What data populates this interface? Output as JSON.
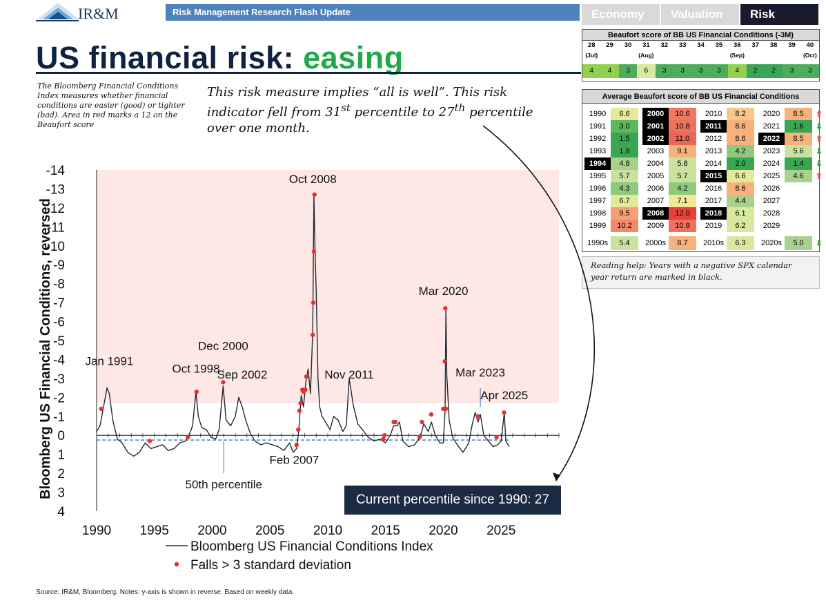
{
  "header": {
    "logo_text": "IR&M",
    "banner": "Risk Management Research Flash Update",
    "tabs": [
      {
        "label": "Economy",
        "active": false
      },
      {
        "label": "Valuation",
        "active": false
      },
      {
        "label": "Risk",
        "active": true
      }
    ]
  },
  "title": {
    "main": "US financial risk: ",
    "accent": "easing"
  },
  "side_note": "The Bloomberg Financial Conditions Index measures whether financial conditions are easier (good) or tighter (bad). Area in red marks a 12 on the Beaufort score",
  "callout": {
    "text": "This risk measure implies “all is well”. This risk indicator fell from 31",
    "sup1": "st",
    "mid": " percentile to 27",
    "sup2": "th",
    "end": " percentile over one month."
  },
  "beaufort_weekly": {
    "title": "Beaufort score of BB US Financial Conditions (-3M)",
    "weeks": [
      "28",
      "29",
      "30",
      "31",
      "32",
      "33",
      "34",
      "35",
      "36",
      "37",
      "38",
      "39",
      "40"
    ],
    "months": [
      "(Jul)",
      "",
      "",
      "(Aug)",
      "",
      "",
      "",
      "",
      "(Sep)",
      "",
      "",
      "",
      "(Oct)"
    ],
    "scores": [
      "4",
      "4",
      "3",
      "6",
      "3",
      "3",
      "3",
      "3",
      "4",
      "2",
      "2",
      "3",
      "3"
    ],
    "score_colors": [
      "#92d050",
      "#92d050",
      "#4ead5b",
      "#d9e8a0",
      "#4ead5b",
      "#4ead5b",
      "#4ead5b",
      "#4ead5b",
      "#92d050",
      "#3aa654",
      "#3aa654",
      "#4ead5b",
      "#4ead5b"
    ]
  },
  "beaufort_annual": {
    "title": "Average Beaufort score of BB US Financial Conditions",
    "columns": [
      [
        {
          "year": "1990",
          "value": "6.6",
          "color": "#e6e89a",
          "neg": false
        },
        {
          "year": "1991",
          "value": "3.0",
          "color": "#5cb85c",
          "neg": false
        },
        {
          "year": "1992",
          "value": "1.5",
          "color": "#3aa654",
          "neg": false
        },
        {
          "year": "1993",
          "value": "1.9",
          "color": "#3aa654",
          "neg": false
        },
        {
          "year": "1994",
          "value": "4.8",
          "color": "#a9d18e",
          "neg": true
        },
        {
          "year": "1995",
          "value": "5.7",
          "color": "#c9e2a0",
          "neg": false
        },
        {
          "year": "1996",
          "value": "4.3",
          "color": "#8fc97e",
          "neg": false
        },
        {
          "year": "1997",
          "value": "6.7",
          "color": "#e6e89a",
          "neg": false
        },
        {
          "year": "1998",
          "value": "9.5",
          "color": "#f4a074",
          "neg": false
        },
        {
          "year": "1999",
          "value": "10.2",
          "color": "#f08a6a",
          "neg": false
        }
      ],
      [
        {
          "year": "2000",
          "value": "10.6",
          "color": "#ee7a63",
          "neg": true
        },
        {
          "year": "2001",
          "value": "10.8",
          "color": "#ec715f",
          "neg": true
        },
        {
          "year": "2002",
          "value": "11.0",
          "color": "#ea665b",
          "neg": true
        },
        {
          "year": "2003",
          "value": "9.1",
          "color": "#f6b17c",
          "neg": false
        },
        {
          "year": "2004",
          "value": "5.8",
          "color": "#c9e2a0",
          "neg": false
        },
        {
          "year": "2005",
          "value": "5.7",
          "color": "#c9e2a0",
          "neg": false
        },
        {
          "year": "2006",
          "value": "4.2",
          "color": "#8fc97e",
          "neg": false
        },
        {
          "year": "2007",
          "value": "7.1",
          "color": "#f3e89a",
          "neg": false
        },
        {
          "year": "2008",
          "value": "12.0",
          "color": "#e8403a",
          "neg": true
        },
        {
          "year": "2009",
          "value": "10.9",
          "color": "#ec715f",
          "neg": false
        }
      ],
      [
        {
          "year": "2010",
          "value": "8.2",
          "color": "#f7c78a",
          "neg": false
        },
        {
          "year": "2011",
          "value": "8.6",
          "color": "#f6b17c",
          "neg": true
        },
        {
          "year": "2012",
          "value": "8.6",
          "color": "#f6b17c",
          "neg": false
        },
        {
          "year": "2013",
          "value": "4.2",
          "color": "#8fc97e",
          "neg": false
        },
        {
          "year": "2014",
          "value": "2.0",
          "color": "#3aa654",
          "neg": false
        },
        {
          "year": "2015",
          "value": "6.6",
          "color": "#e6e89a",
          "neg": true
        },
        {
          "year": "2016",
          "value": "8.6",
          "color": "#f6b17c",
          "neg": false
        },
        {
          "year": "2017",
          "value": "4.4",
          "color": "#a9d18e",
          "neg": false
        },
        {
          "year": "2018",
          "value": "6.1",
          "color": "#d9e8a0",
          "neg": true
        },
        {
          "year": "2019",
          "value": "6.2",
          "color": "#d9e8a0",
          "neg": false
        }
      ],
      [
        {
          "year": "2020",
          "value": "8.5",
          "color": "#f6b17c",
          "neg": false,
          "arrow": "up"
        },
        {
          "year": "2021",
          "value": "1.6",
          "color": "#3aa654",
          "neg": false,
          "arrow": "down"
        },
        {
          "year": "2022",
          "value": "8.5",
          "color": "#f6b17c",
          "neg": true,
          "arrow": "up"
        },
        {
          "year": "2023",
          "value": "5.6",
          "color": "#c9e2a0",
          "neg": false,
          "arrow": "down"
        },
        {
          "year": "2024",
          "value": "1.4",
          "color": "#3aa654",
          "neg": false,
          "arrow": "down"
        },
        {
          "year": "2025",
          "value": "4.6",
          "color": "#a9d18e",
          "neg": false,
          "arrow": "up"
        },
        {
          "year": "2026",
          "value": "",
          "color": "",
          "neg": false
        },
        {
          "year": "2027",
          "value": "",
          "color": "",
          "neg": false
        },
        {
          "year": "2028",
          "value": "",
          "color": "",
          "neg": false
        },
        {
          "year": "2029",
          "value": "",
          "color": "",
          "neg": false
        }
      ]
    ],
    "decades": [
      {
        "label": "1990s",
        "value": "5.4",
        "color": "#c9e2a0"
      },
      {
        "label": "2000s",
        "value": "8.7",
        "color": "#f6b17c"
      },
      {
        "label": "2010s",
        "value": "6.3",
        "color": "#d9e8a0"
      },
      {
        "label": "2020s",
        "value": "5.0",
        "color": "#a9d18e",
        "arrow": "down"
      }
    ]
  },
  "reading_help": "Reading help: Years with a negative SPX calendar year return are marked in black.",
  "current_percentile": "Current percentile since 1990: 27",
  "footer": "Source: IR&M, Bloomberg. Notes: y-axis is shown in reverse. Based on weekly data.",
  "colors": {
    "line": "#1f2a36",
    "falls": "#e8302f",
    "band": "#fde8e6",
    "percentile": "#3a78b5",
    "up_arrow": "#e34a42",
    "down_arrow": "#2e9e4a"
  },
  "chart_data": {
    "type": "line",
    "title": "",
    "xlabel": "",
    "ylabel": "Bloomberg US Financial Conditions, reversed",
    "x_ticks": [
      "1990",
      "1995",
      "2000",
      "2005",
      "2010",
      "2015",
      "2020",
      "2025"
    ],
    "y_ticks": [
      "-14",
      "-13",
      "-12",
      "-11",
      "-10",
      "-9",
      "-8",
      "-7",
      "-6",
      "-5",
      "-4",
      "-3",
      "-2",
      "-1",
      "0",
      "1",
      "2",
      "3",
      "4"
    ],
    "xlim": [
      1990,
      2030
    ],
    "ylim_reversed": [
      4,
      -14
    ],
    "shaded_band": {
      "from": -1.7,
      "to": -14,
      "meaning": "Beaufort score 12"
    },
    "percentile_50": 0.25,
    "series": [
      {
        "name": "Bloomberg US Financial Conditions Index",
        "x": [
          1990.0,
          1990.3,
          1990.6,
          1990.9,
          1991.1,
          1991.4,
          1991.8,
          1992.2,
          1992.7,
          1993.2,
          1993.7,
          1994.2,
          1994.7,
          1995.2,
          1995.7,
          1996.2,
          1996.7,
          1997.2,
          1997.7,
          1998.0,
          1998.3,
          1998.6,
          1998.8,
          1999.1,
          1999.5,
          1999.9,
          2000.3,
          2000.6,
          2000.95,
          2001.2,
          2001.6,
          2002.0,
          2002.3,
          2002.6,
          2002.9,
          2003.3,
          2003.7,
          2004.2,
          2004.7,
          2005.2,
          2005.7,
          2006.2,
          2006.7,
          2007.0,
          2007.3,
          2007.5,
          2007.7,
          2007.9,
          2008.1,
          2008.3,
          2008.5,
          2008.7,
          2008.8,
          2008.9,
          2009.0,
          2009.15,
          2009.3,
          2009.5,
          2009.8,
          2010.2,
          2010.5,
          2010.9,
          2011.3,
          2011.6,
          2011.85,
          2012.2,
          2012.6,
          2013.0,
          2013.5,
          2014.0,
          2014.5,
          2015.0,
          2015.4,
          2015.7,
          2016.0,
          2016.2,
          2016.5,
          2017.0,
          2017.5,
          2018.0,
          2018.3,
          2018.7,
          2018.97,
          2019.3,
          2019.7,
          2020.0,
          2020.15,
          2020.22,
          2020.3,
          2020.5,
          2020.8,
          2021.2,
          2021.7,
          2022.2,
          2022.5,
          2022.75,
          2023.0,
          2023.2,
          2023.5,
          2023.9,
          2024.3,
          2024.7,
          2025.0,
          2025.27,
          2025.4,
          2025.7
        ],
        "values": [
          -0.2,
          -0.5,
          -1.5,
          -2.5,
          -2.2,
          -0.8,
          0.2,
          0.4,
          0.9,
          1.1,
          0.9,
          0.4,
          0.7,
          0.6,
          0.5,
          0.8,
          0.7,
          0.4,
          0.3,
          0.0,
          -0.5,
          -2.3,
          -1.0,
          -0.4,
          -0.3,
          0.1,
          0.2,
          -0.3,
          -2.6,
          -0.8,
          -0.5,
          -1.0,
          -2.0,
          -1.5,
          -0.8,
          -0.1,
          0.3,
          0.5,
          0.4,
          0.5,
          0.6,
          0.8,
          0.4,
          0.9,
          0.7,
          -0.3,
          -2.1,
          -1.5,
          -2.8,
          -3.5,
          -2.2,
          -5.5,
          -12.7,
          -9.7,
          -7.5,
          -3.0,
          -1.5,
          -1.0,
          -0.7,
          -0.3,
          -1.0,
          -0.8,
          -0.2,
          -0.5,
          -3.0,
          -1.6,
          -0.6,
          -0.3,
          0.1,
          0.3,
          0.2,
          0.4,
          0.0,
          -0.5,
          -0.5,
          -0.7,
          0.3,
          0.6,
          0.5,
          0.1,
          -0.6,
          -0.2,
          -0.7,
          0.0,
          0.4,
          0.4,
          -1.3,
          -6.7,
          -3.2,
          -0.8,
          0.1,
          0.5,
          0.9,
          0.4,
          -0.6,
          -1.2,
          -0.7,
          -1.1,
          0.0,
          0.3,
          0.6,
          0.5,
          0.3,
          -1.2,
          0.3,
          0.6
        ]
      },
      {
        "name": "Falls > 3 standard deviation",
        "x": [
          1990.4,
          1994.6,
          1997.9,
          1998.65,
          2000.95,
          2007.3,
          2007.45,
          2007.55,
          2007.65,
          2007.8,
          2007.9,
          2008.05,
          2008.15,
          2008.7,
          2008.75,
          2008.8,
          2008.85,
          2014.8,
          2014.9,
          2015.7,
          2015.85,
          2017.95,
          2018.15,
          2018.95,
          2020.0,
          2020.13,
          2020.17,
          2020.22,
          2023.0,
          2024.6,
          2025.25
        ],
        "values": [
          -1.4,
          0.3,
          0.1,
          -2.3,
          -2.8,
          0.5,
          -0.3,
          -1.3,
          -1.7,
          -2.4,
          -2.3,
          -2.4,
          -3.1,
          -5.3,
          -7.0,
          -9.7,
          -12.7,
          0.2,
          0.0,
          -0.7,
          -0.7,
          0.1,
          -0.7,
          -1.1,
          -1.4,
          -3.9,
          -6.7,
          -1.4,
          -1.0,
          0.1,
          -1.2
        ]
      }
    ],
    "annotations": [
      {
        "text": "Jan 1991",
        "x": 1991.1,
        "y": -3.7
      },
      {
        "text": "Oct 1998",
        "x": 1998.6,
        "y": -3.3
      },
      {
        "text": "Dec 2000",
        "x": 2000.95,
        "y": -4.5
      },
      {
        "text": "Sep 2002",
        "x": 2002.6,
        "y": -3.0
      },
      {
        "text": "Feb 2007",
        "x": 2007.1,
        "y": 1.5
      },
      {
        "text": "Oct 2008",
        "x": 2008.7,
        "y": -13.3
      },
      {
        "text": "Nov 2011",
        "x": 2011.85,
        "y": -3.0
      },
      {
        "text": "Mar 2020",
        "x": 2020.0,
        "y": -7.4
      },
      {
        "text": "Mar 2023",
        "x": 2023.2,
        "y": -3.1
      },
      {
        "text": "Apr 2025",
        "x": 2025.27,
        "y": -1.9
      },
      {
        "text": "50th percentile",
        "x": 2001.0,
        "y": 2.8
      }
    ],
    "legend": [
      "Bloomberg US Financial Conditions Index",
      "Falls > 3 standard deviation"
    ],
    "legend_position": "bottom"
  }
}
